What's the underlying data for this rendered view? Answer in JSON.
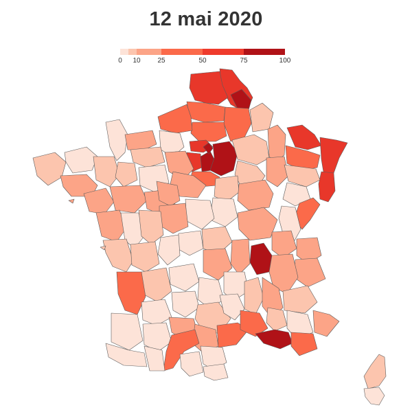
{
  "title": "12 mai 2020",
  "legend": {
    "ticks": [
      "0",
      "10",
      "25",
      "50",
      "75",
      "100"
    ],
    "bins": [
      {
        "from": 0,
        "to": 5,
        "color": "#fde3d8"
      },
      {
        "from": 5,
        "to": 10,
        "color": "#fcc5ae"
      },
      {
        "from": 10,
        "to": 25,
        "color": "#fca487"
      },
      {
        "from": 25,
        "to": 50,
        "color": "#fb6a4a"
      },
      {
        "from": 50,
        "to": 75,
        "color": "#ef3b2c"
      },
      {
        "from": 75,
        "to": 100,
        "color": "#b01217"
      }
    ]
  },
  "colors": {
    "c1": "#fde3d8",
    "c2": "#fcc5ae",
    "c3": "#fca487",
    "c4": "#fb6a4a",
    "c5": "#e8372a",
    "c6": "#b01217",
    "border": "#5b5b5b",
    "title": "#333333"
  }
}
